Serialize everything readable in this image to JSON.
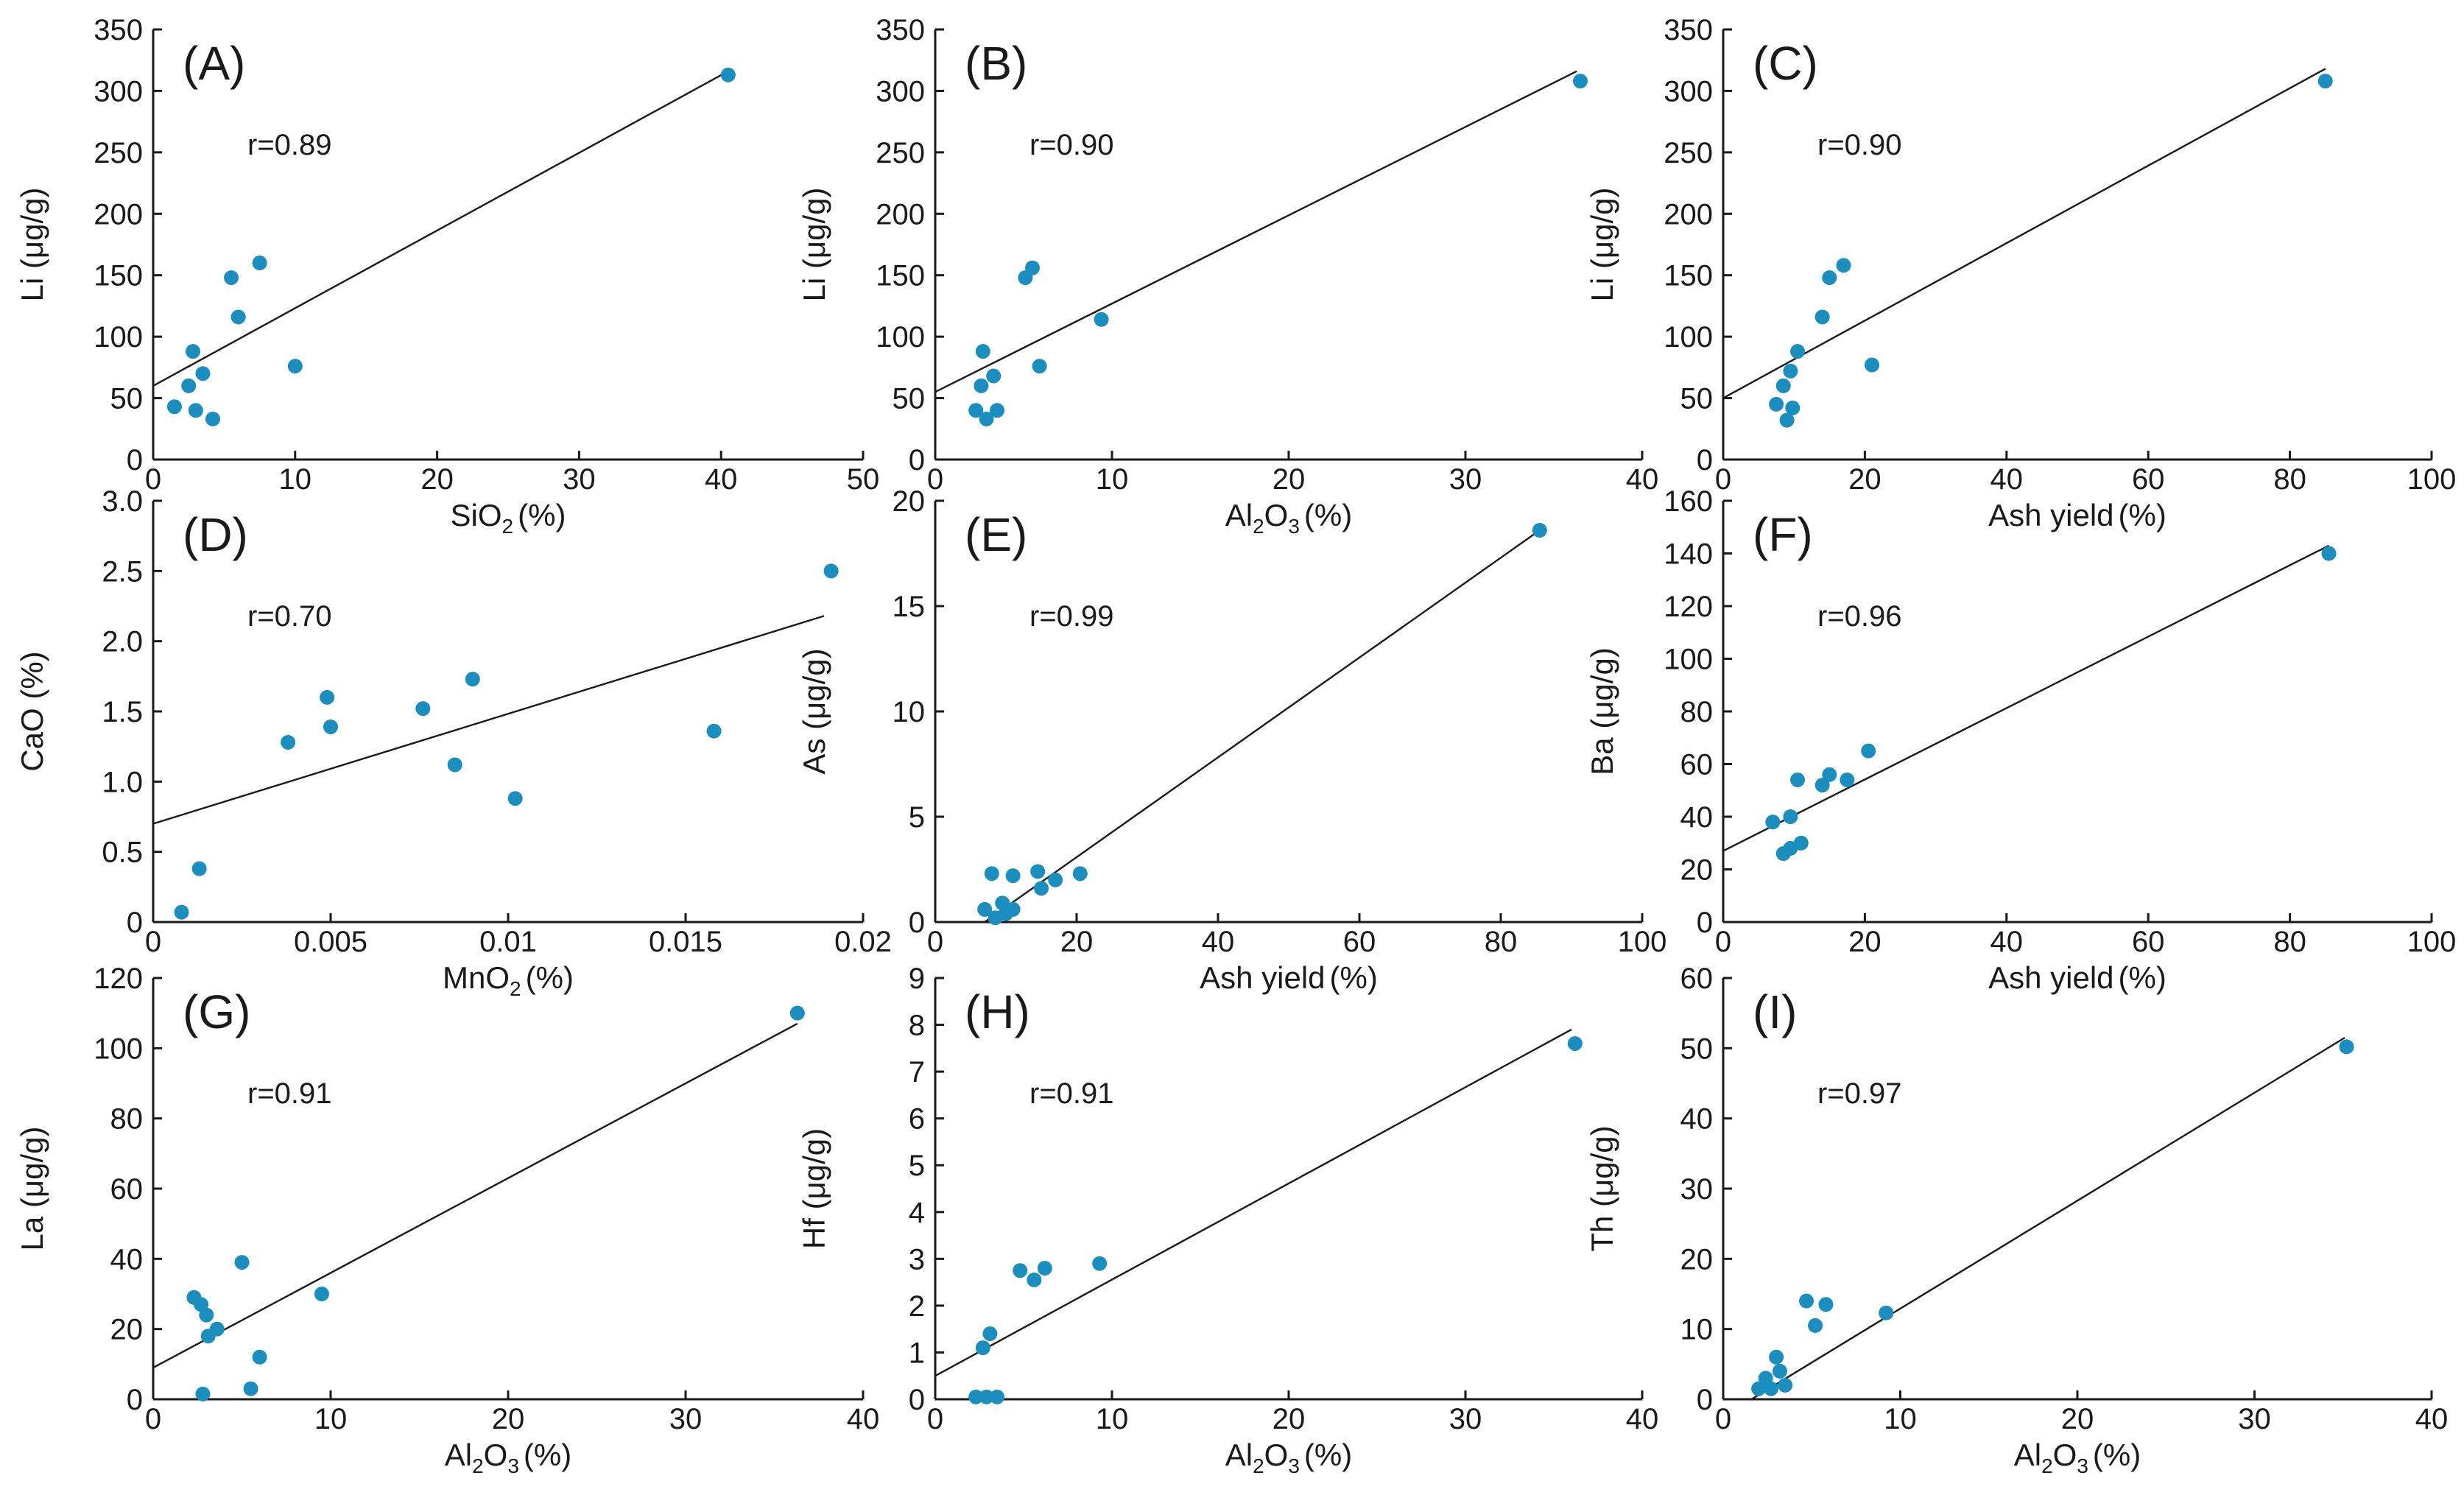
{
  "point_color": "#1a8fbf",
  "chart_data": [
    {
      "id": "A",
      "type": "scatter",
      "panel_label": "(A)",
      "r_text": "r=0.89",
      "xlabel_main": "SiO",
      "xlabel_sub": "2",
      "xlabel_tail": "(%)",
      "ylabel": "Li (μg/g)",
      "xlim": [
        0,
        50
      ],
      "ylim": [
        0,
        350
      ],
      "xticks": [
        0,
        10,
        20,
        30,
        40,
        50
      ],
      "xtick_labels": [
        "0",
        "10",
        "20",
        "30",
        "40",
        "50"
      ],
      "yticks": [
        0,
        50,
        100,
        150,
        200,
        250,
        300,
        350
      ],
      "ytick_labels": [
        "0",
        "50",
        "100",
        "150",
        "200",
        "250",
        "300",
        "350"
      ],
      "points": [
        [
          1.5,
          43
        ],
        [
          2.5,
          60
        ],
        [
          2.8,
          88
        ],
        [
          3.0,
          40
        ],
        [
          3.5,
          70
        ],
        [
          4.2,
          33
        ],
        [
          5.5,
          148
        ],
        [
          6.0,
          116
        ],
        [
          7.5,
          160
        ],
        [
          10.0,
          76
        ],
        [
          40.5,
          313
        ]
      ],
      "fit_line": [
        [
          0,
          60
        ],
        [
          40.5,
          316
        ]
      ]
    },
    {
      "id": "B",
      "type": "scatter",
      "panel_label": "(B)",
      "r_text": "r=0.90",
      "xlabel_main": "Al",
      "xlabel_sub": "2",
      "xlabel_mid": "O",
      "xlabel_sub2": "3",
      "xlabel_tail": "(%)",
      "ylabel": "Li (μg/g)",
      "xlim": [
        0,
        40
      ],
      "ylim": [
        0,
        350
      ],
      "xticks": [
        0,
        10,
        20,
        30,
        40
      ],
      "xtick_labels": [
        "0",
        "10",
        "20",
        "30",
        "40"
      ],
      "yticks": [
        0,
        50,
        100,
        150,
        200,
        250,
        300,
        350
      ],
      "ytick_labels": [
        "0",
        "50",
        "100",
        "150",
        "200",
        "250",
        "300",
        "350"
      ],
      "points": [
        [
          2.3,
          40
        ],
        [
          2.6,
          60
        ],
        [
          2.7,
          88
        ],
        [
          2.9,
          33
        ],
        [
          3.3,
          68
        ],
        [
          3.5,
          40
        ],
        [
          5.1,
          148
        ],
        [
          5.5,
          156
        ],
        [
          5.9,
          76
        ],
        [
          9.4,
          114
        ],
        [
          36.5,
          308
        ]
      ],
      "fit_line": [
        [
          0,
          55
        ],
        [
          36.3,
          316
        ]
      ]
    },
    {
      "id": "C",
      "type": "scatter",
      "panel_label": "(C)",
      "r_text": "r=0.90",
      "xlabel_main": "Ash yield",
      "xlabel_tail": "(%)",
      "ylabel": "Li (μg/g)",
      "xlim": [
        0,
        100
      ],
      "ylim": [
        0,
        350
      ],
      "xticks": [
        0,
        20,
        40,
        60,
        80,
        100
      ],
      "xtick_labels": [
        "0",
        "20",
        "40",
        "60",
        "80",
        "100"
      ],
      "yticks": [
        0,
        50,
        100,
        150,
        200,
        250,
        300,
        350
      ],
      "ytick_labels": [
        "0",
        "50",
        "100",
        "150",
        "200",
        "250",
        "300",
        "350"
      ],
      "points": [
        [
          7.5,
          45
        ],
        [
          8.5,
          60
        ],
        [
          9.0,
          32
        ],
        [
          9.5,
          72
        ],
        [
          9.8,
          42
        ],
        [
          10.5,
          88
        ],
        [
          14.0,
          116
        ],
        [
          15.0,
          148
        ],
        [
          17.0,
          158
        ],
        [
          21.0,
          77
        ],
        [
          85.0,
          308
        ]
      ],
      "fit_line": [
        [
          0,
          50
        ],
        [
          85,
          318
        ]
      ]
    },
    {
      "id": "D",
      "type": "scatter",
      "panel_label": "(D)",
      "r_text": "r=0.70",
      "xlabel_main": "MnO",
      "xlabel_sub": "2",
      "xlabel_tail": "(%)",
      "ylabel": "CaO (%)",
      "xlim": [
        0,
        0.02
      ],
      "ylim": [
        0,
        3.0
      ],
      "xticks": [
        0,
        0.005,
        0.01,
        0.015,
        0.02
      ],
      "xtick_labels": [
        "0",
        "0.005",
        "0.01",
        "0.015",
        "0.02"
      ],
      "yticks": [
        0,
        0.5,
        1.0,
        1.5,
        2.0,
        2.5,
        3.0
      ],
      "ytick_labels": [
        "0",
        "0.5",
        "1.0",
        "1.5",
        "2.0",
        "2.5",
        "3.0"
      ],
      "points": [
        [
          0.0008,
          0.07
        ],
        [
          0.0013,
          0.38
        ],
        [
          0.0038,
          1.28
        ],
        [
          0.0049,
          1.6
        ],
        [
          0.005,
          1.39
        ],
        [
          0.0076,
          1.52
        ],
        [
          0.0085,
          1.12
        ],
        [
          0.009,
          1.73
        ],
        [
          0.0102,
          0.88
        ],
        [
          0.0158,
          1.36
        ],
        [
          0.0191,
          2.5
        ]
      ],
      "fit_line": [
        [
          0,
          0.7
        ],
        [
          0.0189,
          2.18
        ]
      ]
    },
    {
      "id": "E",
      "type": "scatter",
      "panel_label": "(E)",
      "r_text": "r=0.99",
      "xlabel_main": "Ash yield",
      "xlabel_tail": "(%)",
      "ylabel": "As (μg/g)",
      "xlim": [
        0,
        100
      ],
      "ylim": [
        0,
        20
      ],
      "xticks": [
        0,
        20,
        40,
        60,
        80,
        100
      ],
      "xtick_labels": [
        "0",
        "20",
        "40",
        "60",
        "80",
        "100"
      ],
      "yticks": [
        0,
        5,
        10,
        15,
        20
      ],
      "ytick_labels": [
        "0",
        "5",
        "10",
        "15",
        "20"
      ],
      "points": [
        [
          7.0,
          0.6
        ],
        [
          8.0,
          2.3
        ],
        [
          8.5,
          0.2
        ],
        [
          9.5,
          0.9
        ],
        [
          10.0,
          0.4
        ],
        [
          11.0,
          0.6
        ],
        [
          11.0,
          2.2
        ],
        [
          14.5,
          2.4
        ],
        [
          15.0,
          1.6
        ],
        [
          17.0,
          2.0
        ],
        [
          20.5,
          2.3
        ],
        [
          85.5,
          18.6
        ]
      ],
      "fit_line": [
        [
          7,
          0
        ],
        [
          85.5,
          18.6
        ]
      ]
    },
    {
      "id": "F",
      "type": "scatter",
      "panel_label": "(F)",
      "r_text": "r=0.96",
      "xlabel_main": "Ash yield",
      "xlabel_tail": "(%)",
      "ylabel": "Ba (μg/g)",
      "xlim": [
        0,
        100
      ],
      "ylim": [
        0,
        160
      ],
      "xticks": [
        0,
        20,
        40,
        60,
        80,
        100
      ],
      "xtick_labels": [
        "0",
        "20",
        "40",
        "60",
        "80",
        "100"
      ],
      "yticks": [
        0,
        20,
        40,
        60,
        80,
        100,
        120,
        140,
        160
      ],
      "ytick_labels": [
        "0",
        "20",
        "40",
        "60",
        "80",
        "100",
        "120",
        "140",
        "160"
      ],
      "points": [
        [
          7.0,
          38
        ],
        [
          8.5,
          26
        ],
        [
          9.5,
          28
        ],
        [
          9.5,
          40
        ],
        [
          10.5,
          54
        ],
        [
          11.0,
          30
        ],
        [
          14.0,
          52
        ],
        [
          15.0,
          56
        ],
        [
          17.5,
          54
        ],
        [
          20.5,
          65
        ],
        [
          85.5,
          140
        ]
      ],
      "fit_line": [
        [
          0,
          27
        ],
        [
          85.5,
          143
        ]
      ]
    },
    {
      "id": "G",
      "type": "scatter",
      "panel_label": "(G)",
      "r_text": "r=0.91",
      "xlabel_main": "Al",
      "xlabel_sub": "2",
      "xlabel_mid": "O",
      "xlabel_sub2": "3",
      "xlabel_tail": "(%)",
      "ylabel": "La (μg/g)",
      "xlim": [
        0,
        40
      ],
      "ylim": [
        0,
        120
      ],
      "xticks": [
        0,
        10,
        20,
        30,
        40
      ],
      "xtick_labels": [
        "0",
        "10",
        "20",
        "30",
        "40"
      ],
      "yticks": [
        0,
        20,
        40,
        60,
        80,
        100,
        120
      ],
      "ytick_labels": [
        "0",
        "20",
        "40",
        "60",
        "80",
        "100",
        "120"
      ],
      "points": [
        [
          2.3,
          29
        ],
        [
          2.7,
          27
        ],
        [
          2.8,
          1.5
        ],
        [
          3.0,
          24
        ],
        [
          3.1,
          18
        ],
        [
          3.6,
          20
        ],
        [
          5.0,
          39
        ],
        [
          5.5,
          3
        ],
        [
          6.0,
          12
        ],
        [
          9.5,
          30
        ],
        [
          36.3,
          110
        ]
      ],
      "fit_line": [
        [
          0,
          9
        ],
        [
          36.3,
          107
        ]
      ]
    },
    {
      "id": "H",
      "type": "scatter",
      "panel_label": "(H)",
      "r_text": "r=0.91",
      "xlabel_main": "Al",
      "xlabel_sub": "2",
      "xlabel_mid": "O",
      "xlabel_sub2": "3",
      "xlabel_tail": "(%)",
      "ylabel": "Hf (μg/g)",
      "xlim": [
        0,
        40
      ],
      "ylim": [
        0,
        9
      ],
      "xticks": [
        0,
        10,
        20,
        30,
        40
      ],
      "xtick_labels": [
        "0",
        "10",
        "20",
        "30",
        "40"
      ],
      "yticks": [
        0,
        1,
        2,
        3,
        4,
        5,
        6,
        7,
        8,
        9
      ],
      "ytick_labels": [
        "0",
        "1",
        "2",
        "3",
        "4",
        "5",
        "6",
        "7",
        "8",
        "9"
      ],
      "points": [
        [
          2.3,
          0.05
        ],
        [
          2.7,
          1.1
        ],
        [
          2.9,
          0.05
        ],
        [
          3.1,
          1.4
        ],
        [
          3.5,
          0.05
        ],
        [
          4.8,
          2.75
        ],
        [
          5.6,
          2.55
        ],
        [
          6.2,
          2.8
        ],
        [
          9.3,
          2.9
        ],
        [
          36.2,
          7.6
        ]
      ],
      "fit_line": [
        [
          0,
          0.5
        ],
        [
          36.0,
          7.9
        ]
      ]
    },
    {
      "id": "I",
      "type": "scatter",
      "panel_label": "(I)",
      "r_text": "r=0.97",
      "xlabel_main": "Al",
      "xlabel_sub": "2",
      "xlabel_mid": "O",
      "xlabel_sub2": "3",
      "xlabel_tail": "(%)",
      "ylabel": "Th (μg/g)",
      "xlim": [
        0,
        40
      ],
      "ylim": [
        0,
        60
      ],
      "xticks": [
        0,
        10,
        20,
        30,
        40
      ],
      "xtick_labels": [
        "0",
        "10",
        "20",
        "30",
        "40"
      ],
      "yticks": [
        0,
        10,
        20,
        30,
        40,
        50,
        60
      ],
      "ytick_labels": [
        "0",
        "10",
        "20",
        "30",
        "40",
        "50",
        "60"
      ],
      "points": [
        [
          2.0,
          1.5
        ],
        [
          2.4,
          3.0
        ],
        [
          2.7,
          1.5
        ],
        [
          3.0,
          6.0
        ],
        [
          3.2,
          4.0
        ],
        [
          3.5,
          2.0
        ],
        [
          4.7,
          14.0
        ],
        [
          5.2,
          10.5
        ],
        [
          5.8,
          13.5
        ],
        [
          9.2,
          12.3
        ],
        [
          35.2,
          50.2
        ]
      ],
      "fit_line": [
        [
          1.6,
          0
        ],
        [
          35.1,
          51.5
        ]
      ]
    }
  ]
}
